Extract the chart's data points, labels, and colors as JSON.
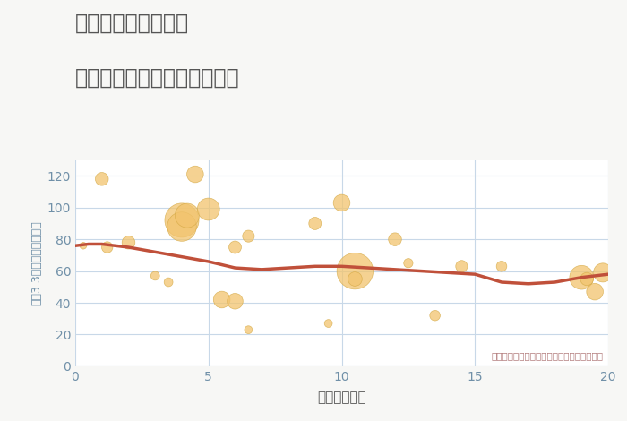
{
  "title_line1": "三重県伊賀市富永の",
  "title_line2": "駅距離別中古マンション価格",
  "xlabel": "駅距離（分）",
  "ylabel": "坪（3.3㎡）単価（万円）",
  "annotation": "円の大きさは、取引のあった物件面積を示す",
  "bg_color": "#f7f7f5",
  "plot_bg_color": "#ffffff",
  "scatter_color": "#f2c46e",
  "scatter_edge_color": "#d4a843",
  "line_color": "#c0503a",
  "grid_color": "#c8d8e8",
  "title_color": "#555555",
  "ylabel_color": "#7090a8",
  "xlabel_color": "#555555",
  "tick_color": "#7090a8",
  "annotation_color": "#b07878",
  "xlim": [
    0,
    20
  ],
  "ylim": [
    0,
    130
  ],
  "yticks": [
    0,
    20,
    40,
    60,
    80,
    100,
    120
  ],
  "xticks": [
    0,
    5,
    10,
    15,
    20
  ],
  "scatter_x": [
    0.3,
    1.0,
    1.2,
    2.0,
    3.0,
    3.5,
    4.0,
    4.0,
    4.2,
    4.5,
    5.0,
    5.5,
    6.0,
    6.0,
    6.5,
    6.5,
    9.0,
    9.5,
    10.0,
    10.5,
    10.5,
    12.0,
    12.5,
    13.5,
    14.5,
    16.0,
    19.0,
    19.2,
    19.5,
    19.8
  ],
  "scatter_y": [
    76,
    118,
    75,
    78,
    57,
    53,
    92,
    88,
    95,
    121,
    99,
    42,
    75,
    41,
    82,
    23,
    90,
    27,
    103,
    60,
    55,
    80,
    65,
    32,
    63,
    63,
    56,
    55,
    47,
    59
  ],
  "scatter_size": [
    30,
    110,
    80,
    110,
    50,
    50,
    750,
    550,
    380,
    180,
    320,
    180,
    100,
    160,
    90,
    40,
    100,
    40,
    180,
    850,
    130,
    110,
    55,
    70,
    90,
    70,
    370,
    110,
    180,
    230
  ],
  "trend_x": [
    0,
    0.5,
    1,
    2,
    3,
    4,
    5,
    6,
    7,
    8,
    9,
    10,
    11,
    12,
    13,
    14,
    15,
    16,
    17,
    18,
    19,
    20
  ],
  "trend_y": [
    76,
    77,
    77,
    75,
    72,
    69,
    66,
    62,
    61,
    62,
    63,
    63,
    62,
    61,
    60,
    59,
    58,
    53,
    52,
    53,
    56,
    58
  ]
}
